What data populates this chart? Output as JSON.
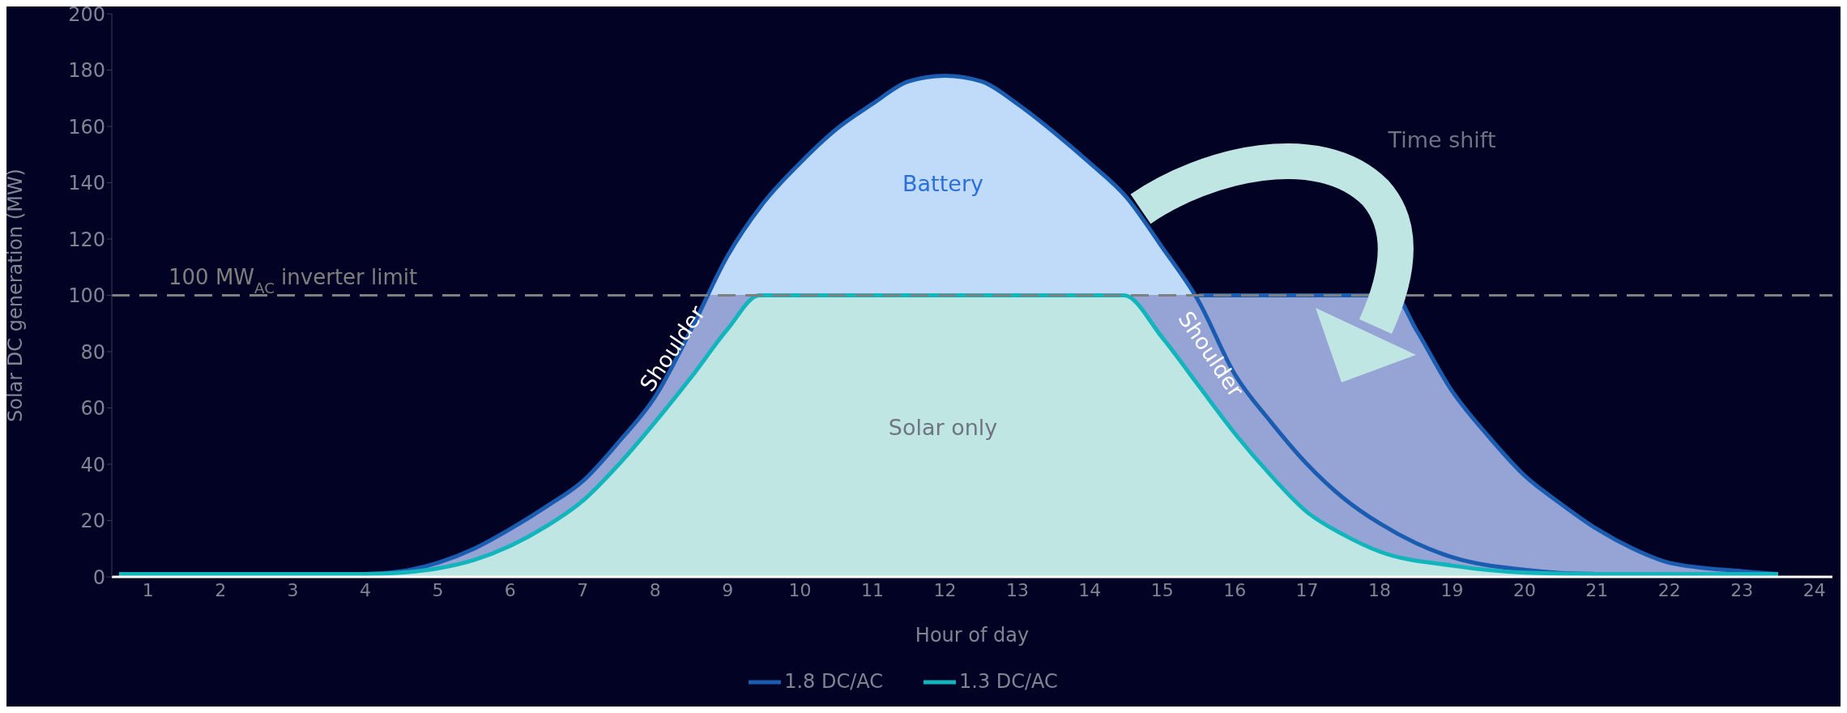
{
  "chart_data": {
    "type": "area",
    "xlabel": "Hour of day",
    "ylabel": "Solar DC generation (MW)",
    "xlim": [
      0.5,
      24.25
    ],
    "xticks": [
      1,
      2,
      3,
      4,
      5,
      6,
      7,
      8,
      9,
      10,
      11,
      12,
      13,
      14,
      15,
      16,
      17,
      18,
      19,
      20,
      21,
      22,
      23,
      24
    ],
    "ylim": [
      0,
      200
    ],
    "yticks": [
      0,
      20,
      40,
      60,
      80,
      100,
      120,
      140,
      160,
      180,
      200
    ],
    "legend": "bottom",
    "series": [
      {
        "color": "#1a5cb0",
        "x": [
          15.5,
          18.2,
          18.5,
          19,
          19.5,
          20,
          20.5,
          21,
          21.5,
          22,
          23,
          23.5
        ],
        "values": [
          100,
          100,
          88,
          66,
          50,
          36,
          26,
          17,
          10,
          5,
          2,
          1
        ]
      },
      {
        "name": "1.8 DC/AC",
        "color": "#1a5cb0",
        "x": [
          0.6,
          1,
          2,
          3,
          4,
          4.5,
          5,
          5.5,
          6,
          6.5,
          7,
          7.5,
          8,
          8.5,
          9,
          9.5,
          10,
          10.5,
          11,
          11.5,
          12,
          12.5,
          13,
          13.5,
          14,
          14.5,
          15,
          15.5,
          16,
          16.5,
          17,
          17.5,
          18,
          18.5,
          19,
          20,
          21,
          22,
          23,
          23.5
        ],
        "values": [
          1,
          1,
          1,
          1,
          1,
          2,
          5,
          10,
          17,
          25,
          34,
          48,
          64,
          88,
          114,
          133,
          147,
          159,
          168,
          176,
          178,
          176,
          168,
          158,
          147,
          135,
          117,
          98,
          72,
          55,
          40,
          28,
          19,
          12,
          7,
          2.5,
          1,
          1,
          1,
          1
        ]
      },
      {
        "name": "1.3 DC/AC",
        "color": "#13b5bd",
        "x": [
          0.6,
          1,
          2,
          3,
          4,
          4.5,
          5,
          5.5,
          6,
          6.5,
          7,
          7.5,
          8,
          8.5,
          9,
          9.44,
          10,
          11,
          12,
          13,
          14,
          14.47,
          15,
          15.5,
          16,
          16.5,
          17,
          17.5,
          18,
          19,
          20,
          21,
          22,
          23,
          23.5
        ],
        "values": [
          1,
          1,
          1,
          1,
          1,
          1.5,
          3,
          6,
          11,
          18,
          27,
          40,
          55,
          71,
          88,
          100,
          100,
          100,
          100,
          100,
          100,
          100,
          85,
          68,
          51,
          36,
          23,
          15,
          9,
          4,
          1.5,
          1,
          1,
          1,
          1
        ]
      }
    ],
    "ref_lines": [
      {
        "axis": "y",
        "value": 100,
        "label": "100 MW$_{AC}$ inverter limit",
        "color": "#7f7f7f",
        "line_style": "dashed"
      }
    ],
    "annotations": [
      "Battery",
      "Solar only",
      "Shoulder",
      "Shoulder",
      "Time shift"
    ]
  }
}
